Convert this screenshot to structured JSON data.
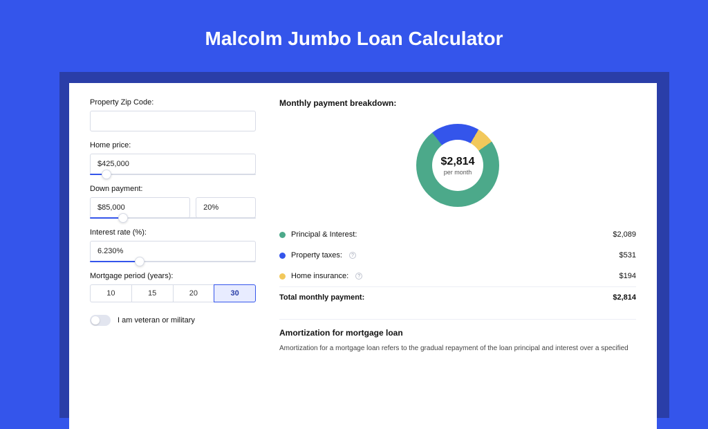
{
  "title": "Malcolm Jumbo Loan Calculator",
  "colors": {
    "page_bg": "#3455eb",
    "shadow": "#2a3ea8",
    "card_bg": "#ffffff",
    "input_border": "#d7dbe6",
    "slider_fill": "#3455eb",
    "selected_bg": "#e8ecff",
    "text": "#111111",
    "muted": "#555555"
  },
  "form": {
    "zip": {
      "label": "Property Zip Code:",
      "value": ""
    },
    "home_price": {
      "label": "Home price:",
      "value": "$425,000",
      "slider_percent": 10
    },
    "down_payment": {
      "label": "Down payment:",
      "value": "$85,000",
      "percent": "20%",
      "slider_percent": 20
    },
    "interest_rate": {
      "label": "Interest rate (%):",
      "value": "6.230%",
      "slider_percent": 30
    },
    "mortgage_period": {
      "label": "Mortgage period (years):",
      "options": [
        "10",
        "15",
        "20",
        "30"
      ],
      "selected_index": 3
    },
    "veteran": {
      "label": "I am veteran or military",
      "checked": false
    }
  },
  "breakdown": {
    "title": "Monthly payment breakdown:",
    "donut": {
      "value": "$2,814",
      "sub": "per month",
      "segments": [
        {
          "label": "Principal & Interest:",
          "value": "$2,089",
          "color": "#4ca98a",
          "percent": 74.2,
          "has_info": false
        },
        {
          "label": "Property taxes:",
          "value": "$531",
          "color": "#3455eb",
          "percent": 18.9,
          "has_info": true
        },
        {
          "label": "Home insurance:",
          "value": "$194",
          "color": "#f2c85b",
          "percent": 6.9,
          "has_info": true
        }
      ]
    },
    "total": {
      "label": "Total monthly payment:",
      "value": "$2,814"
    }
  },
  "amortization": {
    "title": "Amortization for mortgage loan",
    "text": "Amortization for a mortgage loan refers to the gradual repayment of the loan principal and interest over a specified"
  }
}
